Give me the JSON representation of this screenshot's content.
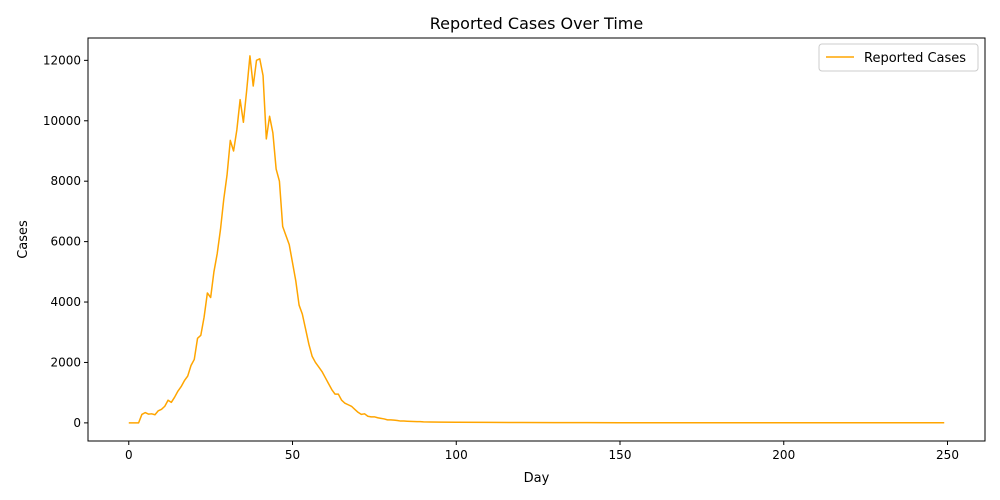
{
  "chart_data": {
    "type": "line",
    "title": "Reported Cases Over Time",
    "xlabel": "Day",
    "ylabel": "Cases",
    "xlim": [
      -12.45,
      261.45
    ],
    "ylim": [
      -600,
      12740
    ],
    "xticks": [
      0,
      50,
      100,
      150,
      200,
      250
    ],
    "yticks": [
      0,
      2000,
      4000,
      6000,
      8000,
      10000,
      12000
    ],
    "grid": false,
    "legend_position": "top-right",
    "series": [
      {
        "name": "Reported Cases",
        "color": "#ffa500",
        "x": [
          0,
          1,
          2,
          3,
          4,
          5,
          6,
          7,
          8,
          9,
          10,
          11,
          12,
          13,
          14,
          15,
          16,
          17,
          18,
          19,
          20,
          21,
          22,
          23,
          24,
          25,
          26,
          27,
          28,
          29,
          30,
          31,
          32,
          33,
          34,
          35,
          36,
          37,
          38,
          39,
          40,
          41,
          42,
          43,
          44,
          45,
          46,
          47,
          48,
          49,
          50,
          51,
          52,
          53,
          54,
          55,
          56,
          57,
          58,
          59,
          60,
          61,
          62,
          63,
          64,
          65,
          66,
          67,
          68,
          69,
          70,
          71,
          72,
          73,
          74,
          75,
          76,
          77,
          78,
          79,
          80,
          81,
          82,
          83,
          84,
          85,
          86,
          87,
          88,
          89,
          90,
          92,
          95,
          100,
          110,
          120,
          130,
          140,
          150,
          200,
          249
        ],
        "y": [
          0,
          0,
          0,
          0,
          280,
          340,
          290,
          300,
          270,
          400,
          450,
          550,
          750,
          680,
          850,
          1050,
          1200,
          1400,
          1550,
          1900,
          2100,
          2800,
          2900,
          3500,
          4300,
          4150,
          5000,
          5600,
          6400,
          7400,
          8200,
          9350,
          9000,
          9700,
          10700,
          9950,
          11000,
          12150,
          11150,
          12000,
          12050,
          11500,
          9400,
          10150,
          9600,
          8400,
          8000,
          6500,
          6200,
          5900,
          5300,
          4700,
          3900,
          3600,
          3100,
          2600,
          2200,
          2000,
          1850,
          1700,
          1500,
          1300,
          1100,
          950,
          950,
          750,
          650,
          600,
          550,
          450,
          350,
          280,
          300,
          220,
          200,
          200,
          170,
          150,
          130,
          100,
          100,
          90,
          80,
          60,
          60,
          55,
          50,
          45,
          40,
          40,
          35,
          30,
          25,
          20,
          15,
          12,
          10,
          8,
          6,
          4,
          2
        ]
      }
    ]
  }
}
